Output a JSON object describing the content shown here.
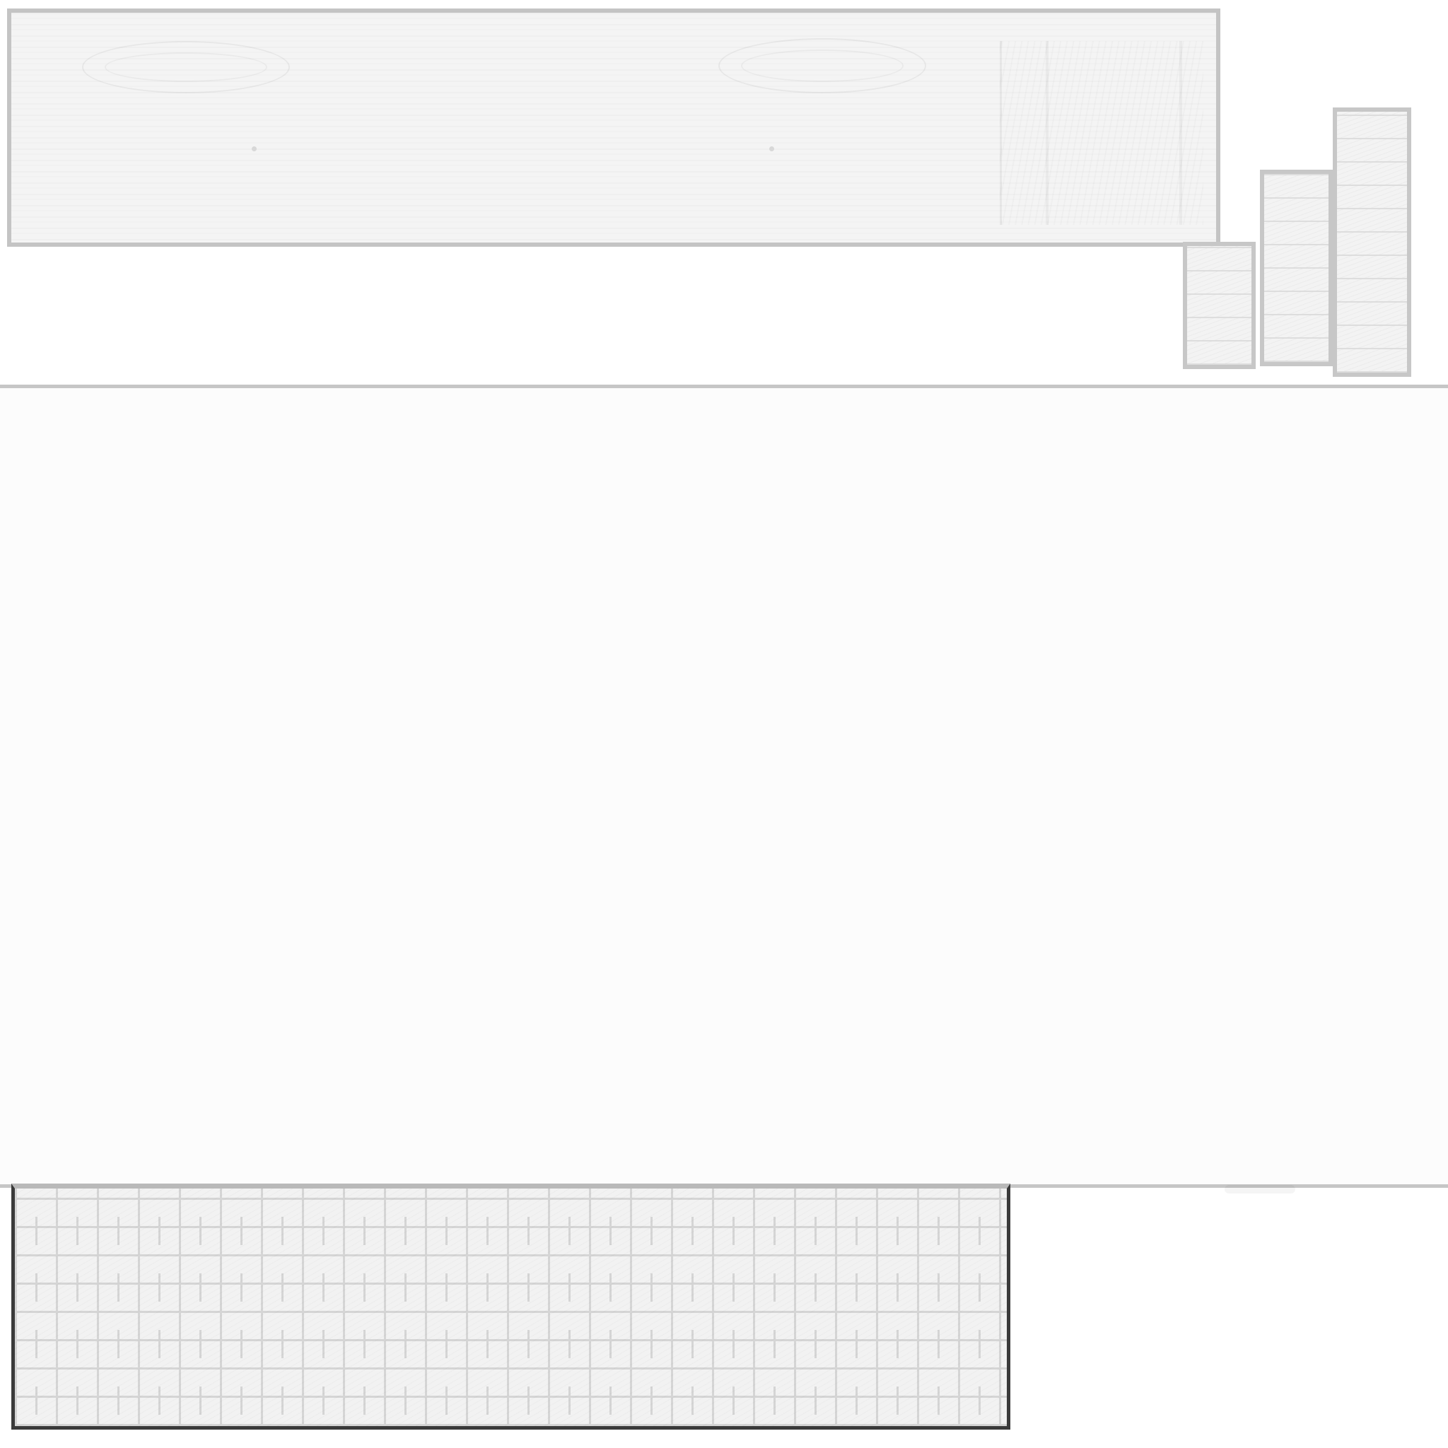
{
  "sheet": {
    "background_color": "#ffffff",
    "border_color": "#c6c6c6",
    "brick_frame_color": "#3a3a3a"
  },
  "assets": [
    {
      "id": "wood-sign-board",
      "kind": "wood plank board texture"
    },
    {
      "id": "stone-pillar-short",
      "kind": "stone block column texture"
    },
    {
      "id": "stone-pillar-medium",
      "kind": "stone block column texture"
    },
    {
      "id": "stone-pillar-tall",
      "kind": "stone block column texture"
    },
    {
      "id": "blank-panel",
      "kind": "empty panel"
    },
    {
      "id": "brick-wall",
      "kind": "brick wall texture"
    }
  ]
}
